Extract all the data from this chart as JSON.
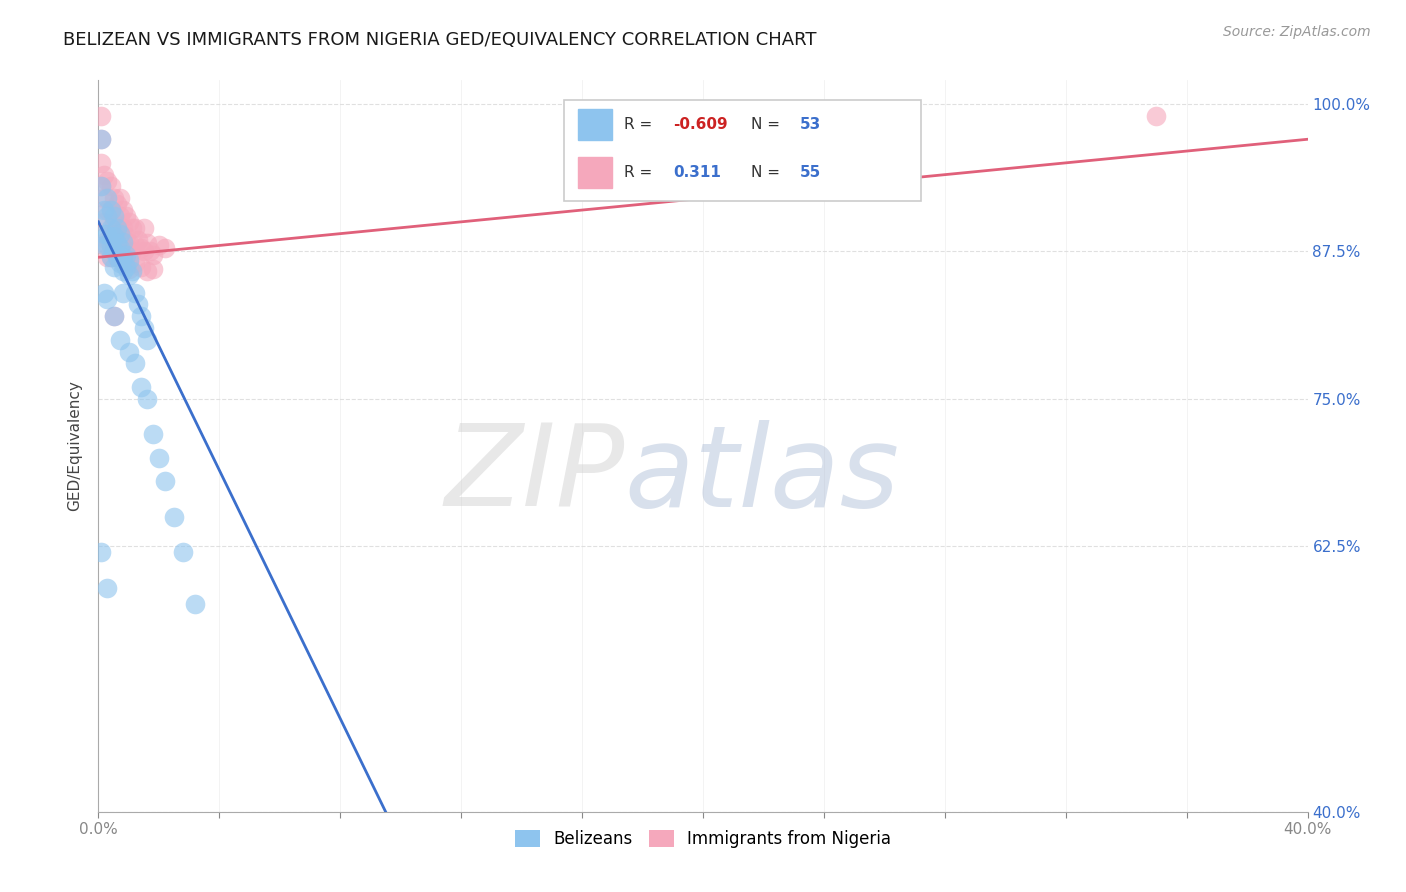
{
  "title": "BELIZEAN VS IMMIGRANTS FROM NIGERIA GED/EQUIVALENCY CORRELATION CHART",
  "source": "Source: ZipAtlas.com",
  "ylabel": "GED/Equivalency",
  "xmin": 0.0,
  "xmax": 0.4,
  "ymin": 0.4,
  "ymax": 1.02,
  "yticks": [
    0.4,
    0.625,
    0.75,
    0.875,
    1.0
  ],
  "ytick_labels": [
    "40.0%",
    "62.5%",
    "75.0%",
    "87.5%",
    "100.0%"
  ],
  "xticks": [
    0.0,
    0.04,
    0.08,
    0.12,
    0.16,
    0.2,
    0.24,
    0.28,
    0.32,
    0.36,
    0.4
  ],
  "xtick_labels_show": [
    "0.0%",
    "",
    "",
    "",
    "",
    "",
    "",
    "",
    "",
    "",
    "40.0%"
  ],
  "blue_color": "#8EC4EE",
  "pink_color": "#F5A8BC",
  "blue_line_color": "#3B6FCC",
  "pink_line_color": "#E0607A",
  "legend_R_blue": "-0.609",
  "legend_N_blue": "53",
  "legend_R_pink": "0.311",
  "legend_N_pink": "55",
  "watermark_color_ZIP": "#C8C8C8",
  "watermark_color_atlas": "#AABBD8",
  "background_color": "#FFFFFF",
  "grid_color": "#DDDDDD",
  "blue_scatter_x": [
    0.001,
    0.001,
    0.002,
    0.002,
    0.002,
    0.003,
    0.003,
    0.003,
    0.003,
    0.004,
    0.004,
    0.004,
    0.004,
    0.005,
    0.005,
    0.005,
    0.005,
    0.006,
    0.006,
    0.006,
    0.007,
    0.007,
    0.007,
    0.008,
    0.008,
    0.008,
    0.009,
    0.009,
    0.01,
    0.01,
    0.011,
    0.012,
    0.013,
    0.014,
    0.015,
    0.016,
    0.002,
    0.003,
    0.005,
    0.007,
    0.008,
    0.01,
    0.012,
    0.014,
    0.016,
    0.018,
    0.02,
    0.022,
    0.025,
    0.028,
    0.001,
    0.003,
    0.032
  ],
  "blue_scatter_y": [
    0.93,
    0.97,
    0.91,
    0.89,
    0.88,
    0.92,
    0.905,
    0.89,
    0.88,
    0.91,
    0.895,
    0.88,
    0.87,
    0.905,
    0.888,
    0.875,
    0.862,
    0.895,
    0.882,
    0.87,
    0.89,
    0.878,
    0.865,
    0.883,
    0.87,
    0.858,
    0.872,
    0.862,
    0.868,
    0.855,
    0.858,
    0.84,
    0.83,
    0.82,
    0.81,
    0.8,
    0.84,
    0.835,
    0.82,
    0.8,
    0.84,
    0.79,
    0.78,
    0.76,
    0.75,
    0.72,
    0.7,
    0.68,
    0.65,
    0.62,
    0.62,
    0.59,
    0.576
  ],
  "pink_scatter_x": [
    0.001,
    0.001,
    0.001,
    0.001,
    0.002,
    0.002,
    0.002,
    0.003,
    0.003,
    0.003,
    0.004,
    0.004,
    0.004,
    0.005,
    0.005,
    0.005,
    0.006,
    0.006,
    0.007,
    0.007,
    0.007,
    0.008,
    0.008,
    0.008,
    0.009,
    0.009,
    0.01,
    0.01,
    0.011,
    0.011,
    0.012,
    0.012,
    0.013,
    0.014,
    0.015,
    0.015,
    0.016,
    0.017,
    0.018,
    0.02,
    0.022,
    0.002,
    0.004,
    0.006,
    0.008,
    0.01,
    0.012,
    0.014,
    0.016,
    0.018,
    0.003,
    0.005,
    0.007,
    0.01,
    0.35
  ],
  "pink_scatter_y": [
    0.99,
    0.97,
    0.95,
    0.93,
    0.94,
    0.92,
    0.9,
    0.935,
    0.91,
    0.885,
    0.93,
    0.91,
    0.89,
    0.92,
    0.9,
    0.88,
    0.915,
    0.895,
    0.92,
    0.905,
    0.885,
    0.91,
    0.895,
    0.875,
    0.905,
    0.888,
    0.9,
    0.882,
    0.895,
    0.875,
    0.895,
    0.88,
    0.885,
    0.878,
    0.895,
    0.875,
    0.882,
    0.875,
    0.872,
    0.88,
    0.878,
    0.88,
    0.87,
    0.87,
    0.865,
    0.865,
    0.865,
    0.862,
    0.858,
    0.86,
    0.87,
    0.82,
    0.87,
    0.86,
    0.99
  ],
  "blue_line_x0": 0.0,
  "blue_line_y0": 0.9,
  "blue_line_x1": 0.095,
  "blue_line_y1": 0.4,
  "pink_line_x0": 0.0,
  "pink_line_y0": 0.87,
  "pink_line_x1": 0.4,
  "pink_line_y1": 0.97
}
